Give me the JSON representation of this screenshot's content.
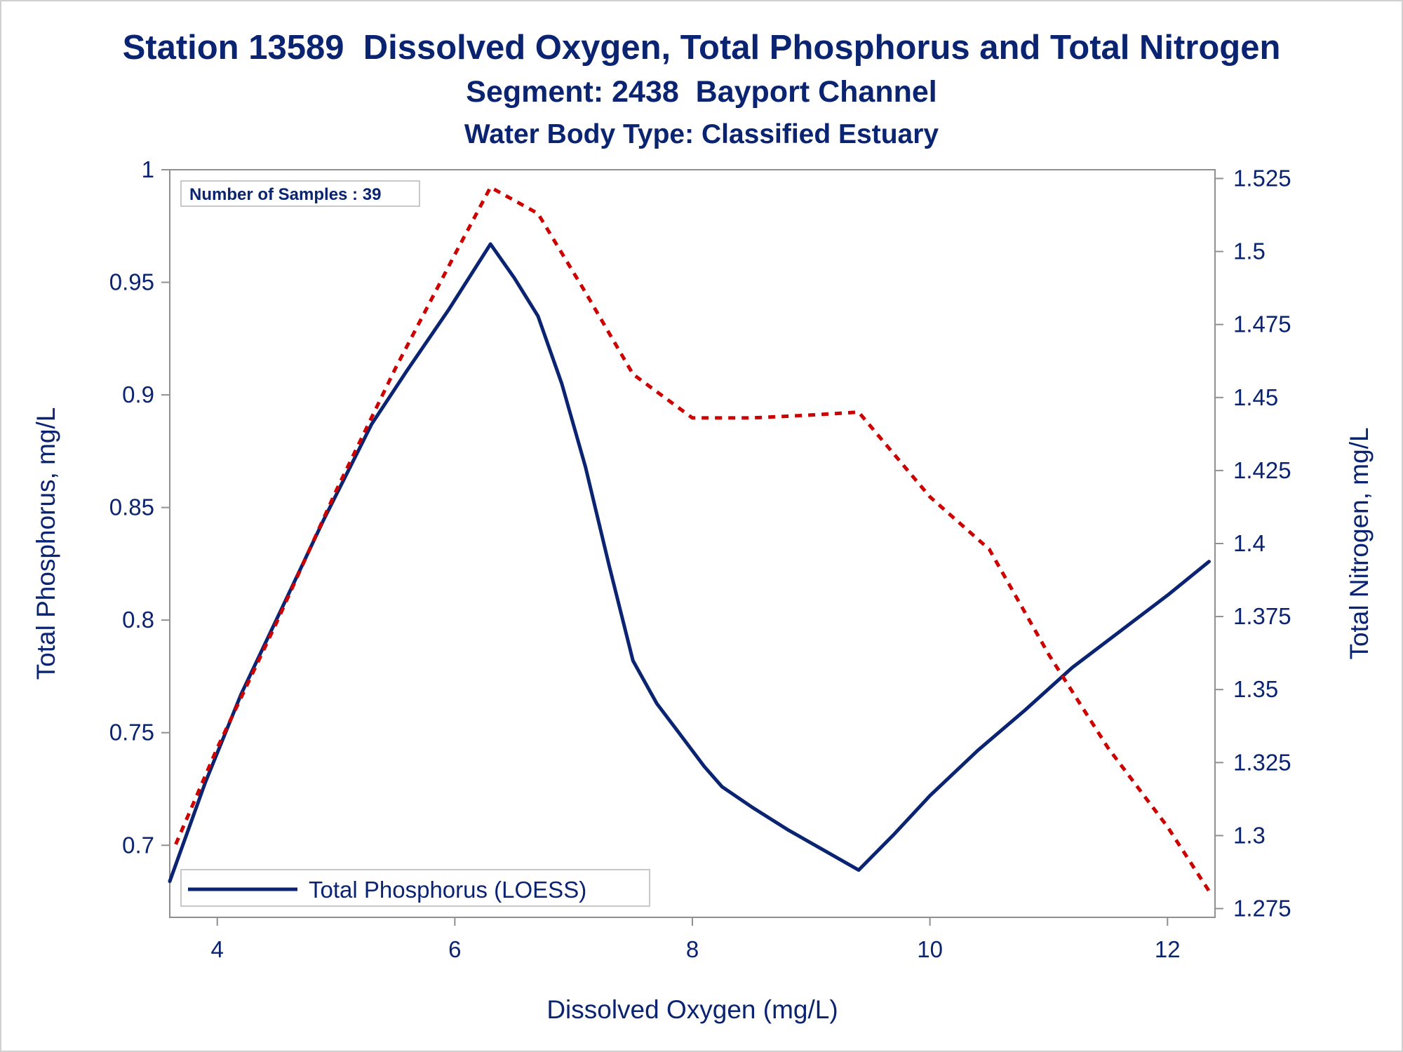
{
  "chart_data": {
    "type": "line",
    "title": "Station 13589  Dissolved Oxygen, Total Phosphorus and Total Nitrogen",
    "subtitle": "Segment: 2438  Bayport Channel",
    "subtitle2": "Water Body Type: Classified Estuary",
    "xlabel": "Dissolved Oxygen (mg/L)",
    "ylabel": "Total Phosphorus, mg/L",
    "y2label": "Total Nitrogen, mg/L",
    "xlim": [
      3.6,
      12.4
    ],
    "ylim": [
      0.668,
      1.0
    ],
    "y2lim": [
      1.272,
      1.528
    ],
    "x_ticks": [
      "4",
      "6",
      "8",
      "10",
      "12"
    ],
    "x_tick_values": [
      4,
      6,
      8,
      10,
      12
    ],
    "y_ticks": [
      "0.7",
      "0.75",
      "0.8",
      "0.85",
      "0.9",
      "0.95",
      "1"
    ],
    "y_tick_values": [
      0.7,
      0.75,
      0.8,
      0.85,
      0.9,
      0.95,
      1.0
    ],
    "y2_ticks": [
      "1.275",
      "1.3",
      "1.325",
      "1.35",
      "1.375",
      "1.4",
      "1.425",
      "1.45",
      "1.475",
      "1.5",
      "1.525"
    ],
    "y2_tick_values": [
      1.275,
      1.3,
      1.325,
      1.35,
      1.375,
      1.4,
      1.425,
      1.45,
      1.475,
      1.5,
      1.525
    ],
    "inset": "Number of Samples : 39",
    "legend_position": "bottom-left",
    "grid": false,
    "series": [
      {
        "name": "Total Phosphorus (LOESS)",
        "axis": "left",
        "color": "#0a2472",
        "dash": "solid",
        "x": [
          3.6,
          3.9,
          4.2,
          4.55,
          4.9,
          5.3,
          5.6,
          5.95,
          6.3,
          6.5,
          6.7,
          6.9,
          7.1,
          7.3,
          7.5,
          7.7,
          7.9,
          8.1,
          8.25,
          8.5,
          8.8,
          9.1,
          9.4,
          9.7,
          10.0,
          10.4,
          10.8,
          11.2,
          11.6,
          12.0,
          12.35
        ],
        "y": [
          0.684,
          0.728,
          0.767,
          0.806,
          0.845,
          0.887,
          0.911,
          0.938,
          0.967,
          0.952,
          0.935,
          0.905,
          0.868,
          0.824,
          0.782,
          0.763,
          0.749,
          0.735,
          0.726,
          0.717,
          0.707,
          0.698,
          0.689,
          0.705,
          0.722,
          0.742,
          0.76,
          0.779,
          0.795,
          0.811,
          0.826
        ]
      },
      {
        "name": "",
        "axis": "right",
        "color": "#cc0000",
        "dash": "dashed",
        "x": [
          3.65,
          4.0,
          4.5,
          5.0,
          5.5,
          6.0,
          6.3,
          6.7,
          7.1,
          7.5,
          8.0,
          8.5,
          9.0,
          9.4,
          10.0,
          10.5,
          11.0,
          11.5,
          12.0,
          12.35
        ],
        "y": [
          1.297,
          1.33,
          1.373,
          1.418,
          1.46,
          1.499,
          1.522,
          1.513,
          1.486,
          1.458,
          1.443,
          1.443,
          1.444,
          1.445,
          1.416,
          1.398,
          1.362,
          1.33,
          1.303,
          1.281
        ]
      }
    ]
  }
}
